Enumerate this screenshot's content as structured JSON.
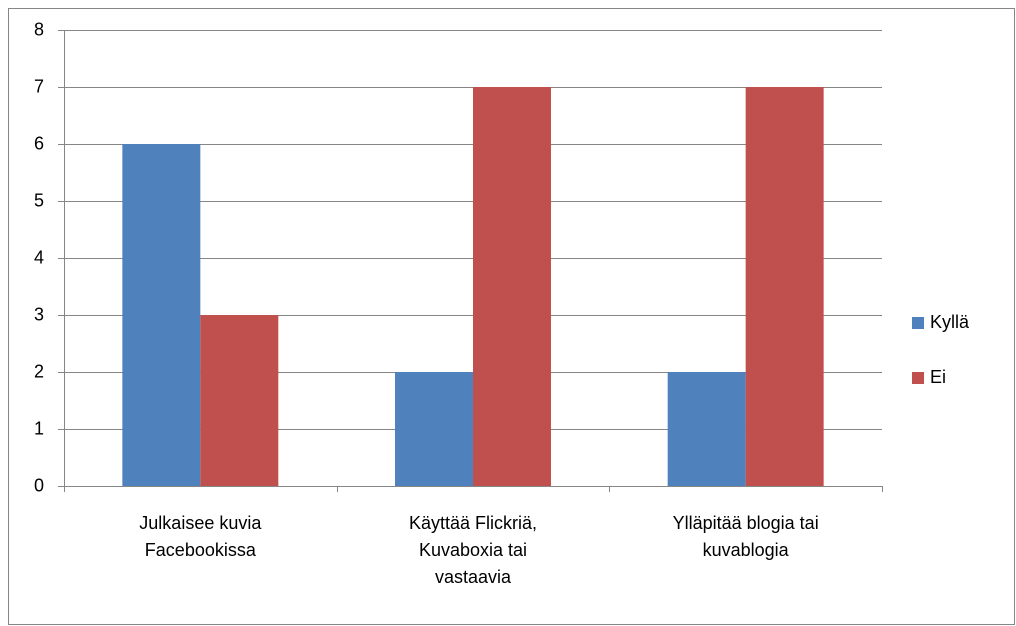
{
  "chart_data": {
    "type": "bar",
    "categories": [
      "Julkaisee kuvia Facebookissa",
      "Käyttää Flickriä, Kuvaboxia tai vastaavia",
      "Ylläpitää blogia tai kuvablogia"
    ],
    "series": [
      {
        "name": "Kyllä",
        "color": "#4f81bd",
        "values": [
          6,
          2,
          2
        ]
      },
      {
        "name": "Ei",
        "color": "#c0504d",
        "values": [
          3,
          7,
          7
        ]
      }
    ],
    "ylim": [
      0,
      8
    ],
    "yticks": [
      0,
      1,
      2,
      3,
      4,
      5,
      6,
      7,
      8
    ],
    "grid": true,
    "legend": "right"
  }
}
